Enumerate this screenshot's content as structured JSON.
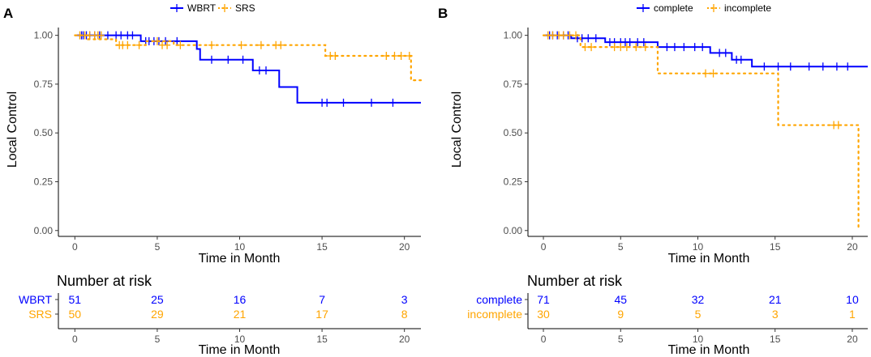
{
  "chart_data": [
    {
      "type": "line",
      "panel": "A",
      "title": "",
      "xlabel": "Time in Month",
      "ylabel": "Local Control",
      "xlim": [
        -1,
        21
      ],
      "ylim": [
        -0.03,
        1.04
      ],
      "xticks": [
        0,
        5,
        10,
        15,
        20
      ],
      "yticks": [
        0,
        0.25,
        0.5,
        0.75,
        1.0
      ],
      "yticklabels": [
        "0.00",
        "0.25",
        "0.50",
        "0.75",
        "1.00"
      ],
      "legend": "top-center",
      "series": [
        {
          "name": "WBRT",
          "color": "#0000ff",
          "dash": "solid",
          "steps": [
            [
              0,
              1.0
            ],
            [
              4.0,
              0.97
            ],
            [
              7.4,
              0.93
            ],
            [
              7.6,
              0.875
            ],
            [
              10.8,
              0.82
            ],
            [
              12.4,
              0.735
            ],
            [
              13.5,
              0.655
            ],
            [
              21,
              0.655
            ]
          ],
          "censor": [
            [
              0.4,
              1.0
            ],
            [
              0.5,
              1.0
            ],
            [
              0.7,
              1.0
            ],
            [
              0.9,
              1.0
            ],
            [
              1.2,
              1.0
            ],
            [
              1.5,
              1.0
            ],
            [
              2.0,
              1.0
            ],
            [
              2.5,
              1.0
            ],
            [
              2.8,
              1.0
            ],
            [
              3.2,
              1.0
            ],
            [
              3.5,
              1.0
            ],
            [
              4.3,
              0.97
            ],
            [
              4.5,
              0.97
            ],
            [
              4.8,
              0.97
            ],
            [
              5.1,
              0.97
            ],
            [
              5.5,
              0.97
            ],
            [
              6.2,
              0.97
            ],
            [
              8.3,
              0.875
            ],
            [
              9.3,
              0.875
            ],
            [
              10.2,
              0.875
            ],
            [
              11.2,
              0.82
            ],
            [
              11.6,
              0.82
            ],
            [
              15.0,
              0.655
            ],
            [
              15.3,
              0.655
            ],
            [
              16.3,
              0.655
            ],
            [
              18.0,
              0.655
            ],
            [
              19.3,
              0.655
            ]
          ]
        },
        {
          "name": "SRS",
          "color": "#ffa500",
          "dash": "dotted",
          "steps": [
            [
              0,
              1.0
            ],
            [
              0.8,
              0.98
            ],
            [
              2.5,
              0.95
            ],
            [
              4.3,
              0.97
            ],
            [
              6.0,
              0.95
            ],
            [
              15.2,
              0.895
            ],
            [
              20.4,
              0.77
            ],
            [
              21,
              0.77
            ]
          ],
          "censor": [
            [
              0.3,
              1.0
            ],
            [
              0.6,
              1.0
            ],
            [
              0.9,
              1.0
            ],
            [
              1.2,
              1.0
            ],
            [
              1.4,
              1.0
            ],
            [
              1.6,
              1.0
            ],
            [
              2.7,
              0.95
            ],
            [
              2.9,
              0.95
            ],
            [
              3.2,
              0.95
            ],
            [
              3.9,
              0.95
            ],
            [
              5.0,
              0.97
            ],
            [
              5.3,
              0.95
            ],
            [
              5.6,
              0.95
            ],
            [
              6.4,
              0.95
            ],
            [
              8.3,
              0.95
            ],
            [
              10.1,
              0.95
            ],
            [
              11.3,
              0.95
            ],
            [
              12.2,
              0.95
            ],
            [
              12.5,
              0.95
            ],
            [
              15.5,
              0.895
            ],
            [
              15.8,
              0.895
            ],
            [
              18.9,
              0.895
            ],
            [
              19.4,
              0.895
            ],
            [
              19.8,
              0.895
            ],
            [
              20.3,
              0.895
            ]
          ]
        }
      ],
      "risk_table": {
        "title": "Number at risk",
        "xlabel": "Time in Month",
        "times": [
          0,
          5,
          10,
          15,
          20
        ],
        "rows": [
          {
            "name": "WBRT",
            "color": "#0000ff",
            "values": [
              51,
              25,
              16,
              7,
              3
            ]
          },
          {
            "name": "SRS",
            "color": "#ffa500",
            "values": [
              50,
              29,
              21,
              17,
              8
            ]
          }
        ]
      }
    },
    {
      "type": "line",
      "panel": "B",
      "title": "",
      "xlabel": "Time in Month",
      "ylabel": "Local Control",
      "xlim": [
        -1,
        21
      ],
      "ylim": [
        -0.03,
        1.04
      ],
      "xticks": [
        0,
        5,
        10,
        15,
        20
      ],
      "yticks": [
        0,
        0.25,
        0.5,
        0.75,
        1.0
      ],
      "yticklabels": [
        "0.00",
        "0.25",
        "0.50",
        "0.75",
        "1.00"
      ],
      "legend": "top-center",
      "series": [
        {
          "name": "complete",
          "color": "#0000ff",
          "dash": "solid",
          "steps": [
            [
              0,
              1.0
            ],
            [
              1.8,
              0.985
            ],
            [
              4.0,
              0.965
            ],
            [
              7.4,
              0.94
            ],
            [
              10.8,
              0.91
            ],
            [
              12.2,
              0.875
            ],
            [
              13.5,
              0.84
            ],
            [
              21,
              0.84
            ]
          ],
          "censor": [
            [
              0.4,
              1.0
            ],
            [
              0.6,
              1.0
            ],
            [
              0.9,
              1.0
            ],
            [
              1.3,
              1.0
            ],
            [
              1.6,
              1.0
            ],
            [
              2.2,
              0.985
            ],
            [
              2.5,
              0.985
            ],
            [
              2.9,
              0.985
            ],
            [
              3.4,
              0.985
            ],
            [
              4.3,
              0.965
            ],
            [
              4.6,
              0.965
            ],
            [
              5.0,
              0.965
            ],
            [
              5.3,
              0.965
            ],
            [
              5.6,
              0.965
            ],
            [
              6.1,
              0.965
            ],
            [
              6.5,
              0.965
            ],
            [
              8.0,
              0.94
            ],
            [
              8.5,
              0.94
            ],
            [
              9.1,
              0.94
            ],
            [
              9.8,
              0.94
            ],
            [
              10.3,
              0.94
            ],
            [
              11.4,
              0.91
            ],
            [
              11.8,
              0.91
            ],
            [
              12.5,
              0.875
            ],
            [
              12.8,
              0.875
            ],
            [
              14.3,
              0.84
            ],
            [
              15.2,
              0.84
            ],
            [
              16.0,
              0.84
            ],
            [
              17.2,
              0.84
            ],
            [
              18.1,
              0.84
            ],
            [
              19.0,
              0.84
            ],
            [
              19.7,
              0.84
            ]
          ]
        },
        {
          "name": "incomplete",
          "color": "#ffa500",
          "dash": "dotted",
          "steps": [
            [
              0,
              1.0
            ],
            [
              2.4,
              0.94
            ],
            [
              7.4,
              0.805
            ],
            [
              15.2,
              0.54
            ],
            [
              20.4,
              0.0
            ]
          ],
          "censor": [
            [
              0.3,
              1.0
            ],
            [
              0.6,
              1.0
            ],
            [
              1.0,
              1.0
            ],
            [
              1.3,
              1.0
            ],
            [
              1.7,
              1.0
            ],
            [
              2.1,
              1.0
            ],
            [
              2.7,
              0.94
            ],
            [
              3.1,
              0.94
            ],
            [
              4.6,
              0.94
            ],
            [
              5.0,
              0.94
            ],
            [
              5.4,
              0.94
            ],
            [
              6.0,
              0.94
            ],
            [
              6.6,
              0.94
            ],
            [
              10.5,
              0.805
            ],
            [
              11.0,
              0.805
            ],
            [
              18.8,
              0.54
            ],
            [
              19.1,
              0.54
            ]
          ]
        }
      ],
      "risk_table": {
        "title": "Number at risk",
        "xlabel": "Time in Month",
        "times": [
          0,
          5,
          10,
          15,
          20
        ],
        "rows": [
          {
            "name": "complete",
            "color": "#0000ff",
            "values": [
              71,
              45,
              32,
              21,
              10
            ]
          },
          {
            "name": "incomplete",
            "color": "#ffa500",
            "values": [
              30,
              9,
              5,
              3,
              1
            ]
          }
        ]
      }
    }
  ]
}
